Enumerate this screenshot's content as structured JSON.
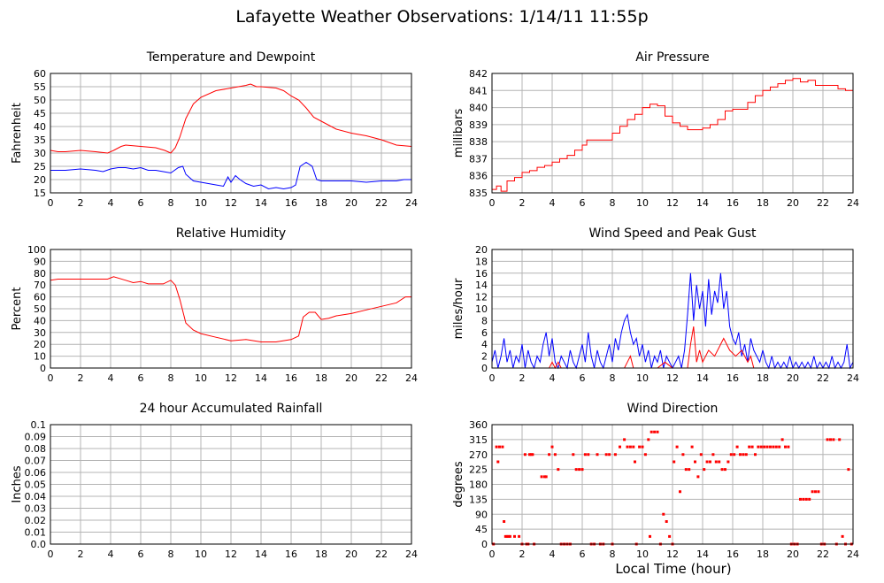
{
  "page": {
    "title": "Lafayette Weather Observations: 1/14/11 11:55p",
    "x_axis_title": "Local Time (hour)"
  },
  "chart_data": [
    {
      "id": "temp",
      "type": "line",
      "title": "Temperature and Dewpoint",
      "xlabel": "",
      "ylabel": "Fahrenheit",
      "xlim": [
        0,
        24
      ],
      "ylim": [
        15,
        60
      ],
      "x_ticks": [
        0,
        2,
        4,
        6,
        8,
        10,
        12,
        14,
        16,
        18,
        20,
        22,
        24
      ],
      "y_ticks": [
        15,
        20,
        25,
        30,
        35,
        40,
        45,
        50,
        55,
        60
      ],
      "grid": true,
      "series": [
        {
          "color": "#ff0000",
          "x": [
            0,
            0.5,
            1,
            2,
            3,
            3.8,
            4.2,
            4.7,
            5,
            6,
            7,
            7.6,
            8,
            8.3,
            8.6,
            9,
            9.5,
            10,
            11,
            12,
            13,
            13.3,
            13.7,
            14,
            15,
            15.5,
            16,
            16.5,
            17,
            17.5,
            18,
            19,
            20,
            21,
            22,
            23,
            24
          ],
          "y": [
            31,
            30.5,
            30.5,
            31,
            30.5,
            30,
            31,
            32.5,
            33,
            32.5,
            32,
            31,
            30,
            32,
            36,
            43,
            48.5,
            51,
            53.5,
            54.5,
            55.5,
            56,
            55,
            55,
            54.5,
            53.5,
            51.5,
            50,
            47,
            43.5,
            42,
            39,
            37.5,
            36.5,
            35,
            33,
            32.5
          ]
        },
        {
          "color": "#0000ff",
          "x": [
            0,
            0.5,
            1,
            2,
            3,
            3.5,
            4,
            4.5,
            5,
            5.5,
            6,
            6.5,
            7,
            7.5,
            8,
            8.5,
            8.8,
            9,
            9.5,
            10,
            10.5,
            11,
            11.5,
            11.8,
            12,
            12.3,
            12.6,
            13,
            13.5,
            14,
            14.5,
            15,
            15.5,
            16,
            16.3,
            16.6,
            17,
            17.4,
            17.7,
            18,
            19,
            20,
            21,
            22,
            23,
            23.5,
            24
          ],
          "y": [
            23.5,
            23.5,
            23.5,
            24,
            23.5,
            23,
            24,
            24.5,
            24.5,
            24,
            24.5,
            23.5,
            23.5,
            23,
            22.5,
            24.5,
            25,
            22,
            19.5,
            19,
            18.5,
            18,
            17.5,
            21,
            19,
            21.5,
            20,
            18.5,
            17.5,
            18,
            16.5,
            17,
            16.5,
            17,
            18,
            25,
            26.5,
            25,
            20,
            19.5,
            19.5,
            19.5,
            19,
            19.5,
            19.5,
            20,
            20
          ]
        }
      ]
    },
    {
      "id": "pressure",
      "type": "line",
      "title": "Air Pressure",
      "xlabel": "",
      "ylabel": "millibars",
      "xlim": [
        0,
        24
      ],
      "ylim": [
        835,
        842
      ],
      "x_ticks": [
        0,
        2,
        4,
        6,
        8,
        10,
        12,
        14,
        16,
        18,
        20,
        22,
        24
      ],
      "y_ticks": [
        835,
        836,
        837,
        838,
        839,
        840,
        841,
        842
      ],
      "grid": true,
      "series": [
        {
          "color": "#ff0000",
          "step": true,
          "x": [
            0,
            0.3,
            0.6,
            1,
            1.5,
            2,
            2.5,
            3,
            3.5,
            4,
            4.5,
            5,
            5.5,
            6,
            6.3,
            7,
            8,
            8.5,
            9,
            9.5,
            10,
            10.5,
            11,
            11.5,
            12,
            12.5,
            13,
            14,
            14.5,
            15,
            15.5,
            16,
            17,
            17.5,
            18,
            18.5,
            19,
            19.5,
            20,
            20.5,
            21,
            21.5,
            22,
            23,
            23.5,
            24
          ],
          "y": [
            835.2,
            835.4,
            835.1,
            835.7,
            835.9,
            836.2,
            836.3,
            836.5,
            836.6,
            836.8,
            837.0,
            837.2,
            837.5,
            837.8,
            838.1,
            838.1,
            838.5,
            838.9,
            839.3,
            839.6,
            840.0,
            840.2,
            840.1,
            839.5,
            839.1,
            838.9,
            838.7,
            838.8,
            839.0,
            839.3,
            839.8,
            839.9,
            840.3,
            840.7,
            841.0,
            841.2,
            841.4,
            841.6,
            841.7,
            841.5,
            841.6,
            841.3,
            841.3,
            841.1,
            841.0,
            840.8
          ]
        }
      ]
    },
    {
      "id": "humidity",
      "type": "line",
      "title": "Relative Humidity",
      "xlabel": "",
      "ylabel": "Percent",
      "xlim": [
        0,
        24
      ],
      "ylim": [
        0,
        100
      ],
      "x_ticks": [
        0,
        2,
        4,
        6,
        8,
        10,
        12,
        14,
        16,
        18,
        20,
        22,
        24
      ],
      "y_ticks": [
        0,
        10,
        20,
        30,
        40,
        50,
        60,
        70,
        80,
        90,
        100
      ],
      "grid": true,
      "series": [
        {
          "color": "#ff0000",
          "x": [
            0,
            0.5,
            1,
            2,
            3,
            3.8,
            4.2,
            5,
            5.5,
            6,
            6.5,
            7,
            7.5,
            8,
            8.3,
            8.6,
            9,
            9.5,
            10,
            11,
            12,
            13,
            14,
            15,
            16,
            16.5,
            16.8,
            17.2,
            17.6,
            18,
            18.5,
            19,
            20,
            21,
            22,
            23,
            23.6,
            24
          ],
          "y": [
            74,
            75,
            75,
            75,
            75,
            75,
            77,
            74,
            72,
            73,
            71,
            71,
            71,
            74,
            70,
            58,
            38,
            32,
            29,
            26,
            23,
            24,
            22,
            22,
            24,
            27,
            43,
            47,
            47,
            41,
            42,
            44,
            46,
            49,
            52,
            55,
            60,
            60
          ]
        }
      ]
    },
    {
      "id": "wind",
      "type": "line",
      "title": "Wind Speed and Peak Gust",
      "xlabel": "",
      "ylabel": "miles/hour",
      "xlim": [
        0,
        24
      ],
      "ylim": [
        0,
        20
      ],
      "x_ticks": [
        0,
        2,
        4,
        6,
        8,
        10,
        12,
        14,
        16,
        18,
        20,
        22,
        24
      ],
      "y_ticks": [
        0,
        2,
        4,
        6,
        8,
        10,
        12,
        14,
        16,
        18,
        20
      ],
      "grid": true,
      "series": [
        {
          "color": "#0000ff",
          "x": [
            0,
            0.2,
            0.4,
            0.6,
            0.8,
            1,
            1.2,
            1.4,
            1.6,
            1.8,
            2,
            2.2,
            2.4,
            2.6,
            2.8,
            3,
            3.2,
            3.4,
            3.6,
            3.8,
            4,
            4.2,
            4.4,
            4.6,
            4.8,
            5,
            5.2,
            5.4,
            5.6,
            5.8,
            6,
            6.2,
            6.4,
            6.6,
            6.8,
            7,
            7.2,
            7.4,
            7.6,
            7.8,
            8,
            8.2,
            8.4,
            8.6,
            8.8,
            9,
            9.2,
            9.4,
            9.6,
            9.8,
            10,
            10.2,
            10.4,
            10.6,
            10.8,
            11,
            11.2,
            11.4,
            11.6,
            11.8,
            12,
            12.2,
            12.4,
            12.6,
            12.8,
            13,
            13.2,
            13.4,
            13.6,
            13.8,
            14,
            14.2,
            14.4,
            14.6,
            14.8,
            15,
            15.2,
            15.4,
            15.6,
            15.8,
            16,
            16.2,
            16.4,
            16.6,
            16.8,
            17,
            17.2,
            17.4,
            17.6,
            17.8,
            18,
            18.2,
            18.4,
            18.6,
            18.8,
            19,
            19.2,
            19.4,
            19.6,
            19.8,
            20,
            20.2,
            20.4,
            20.6,
            20.8,
            21,
            21.2,
            21.4,
            21.6,
            21.8,
            22,
            22.2,
            22.4,
            22.6,
            22.8,
            23,
            23.2,
            23.4,
            23.6,
            23.8,
            24
          ],
          "y": [
            1,
            3,
            0,
            2,
            5,
            1,
            3,
            0,
            2,
            1,
            4,
            0,
            3,
            1,
            0,
            2,
            1,
            4,
            6,
            2,
            5,
            1,
            0,
            2,
            1,
            0,
            3,
            1,
            0,
            2,
            4,
            1,
            6,
            2,
            0,
            3,
            1,
            0,
            2,
            4,
            1,
            5,
            3,
            6,
            8,
            9,
            6,
            4,
            5,
            2,
            4,
            1,
            3,
            0,
            2,
            1,
            3,
            0,
            2,
            1,
            0,
            1,
            2,
            0,
            3,
            9,
            16,
            8,
            14,
            10,
            13,
            7,
            15,
            9,
            13,
            11,
            16,
            10,
            13,
            7,
            5,
            4,
            6,
            2,
            4,
            1,
            5,
            3,
            2,
            1,
            3,
            1,
            0,
            2,
            0,
            1,
            0,
            1,
            0,
            2,
            0,
            1,
            0,
            1,
            0,
            1,
            0,
            2,
            0,
            1,
            0,
            1,
            0,
            2,
            0,
            1,
            0,
            1,
            4,
            0,
            1
          ]
        },
        {
          "color": "#ff0000",
          "x": [
            0,
            3.8,
            4,
            4.2,
            4.4,
            4.6,
            6,
            8.8,
            9,
            9.2,
            9.4,
            11,
            11.5,
            12,
            13,
            13.2,
            13.4,
            13.6,
            13.8,
            14,
            14.4,
            14.8,
            15,
            15.4,
            15.8,
            16.2,
            16.6,
            17,
            17.2,
            17.4,
            18,
            20,
            24
          ],
          "y": [
            0,
            0,
            1,
            0,
            1,
            0,
            0,
            0,
            1,
            2,
            0,
            0,
            1,
            0,
            0,
            4,
            7,
            1,
            3,
            1,
            3,
            2,
            3,
            5,
            3,
            2,
            3,
            1,
            2,
            0,
            0,
            0,
            0
          ]
        }
      ]
    },
    {
      "id": "rain",
      "type": "line",
      "title": "24 hour Accumulated Rainfall",
      "xlabel": "",
      "ylabel": "Inches",
      "xlim": [
        0,
        24
      ],
      "ylim": [
        0,
        0.1
      ],
      "x_ticks": [
        0,
        2,
        4,
        6,
        8,
        10,
        12,
        14,
        16,
        18,
        20,
        22,
        24
      ],
      "y_ticks": [
        "0.0",
        "0.01",
        "0.02",
        "0.03",
        "0.04",
        "0.05",
        "0.06",
        "0.07",
        "0.08",
        "0.09",
        "0.1"
      ],
      "grid": true,
      "series": [
        {
          "color": "#ff0000",
          "x": [
            0,
            24
          ],
          "y": [
            0,
            0
          ]
        }
      ]
    },
    {
      "id": "direction",
      "type": "scatter",
      "title": "Wind Direction",
      "xlabel": "",
      "ylabel": "degrees",
      "xlim": [
        0,
        24
      ],
      "ylim": [
        0,
        360
      ],
      "x_ticks": [
        0,
        2,
        4,
        6,
        8,
        10,
        12,
        14,
        16,
        18,
        20,
        22,
        24
      ],
      "y_ticks": [
        0,
        45,
        90,
        135,
        180,
        225,
        270,
        315,
        360
      ],
      "grid": true,
      "series": [
        {
          "color": "#ff0000",
          "x": [
            0.1,
            0.3,
            0.5,
            0.7,
            0.9,
            1.1,
            0.8,
            1,
            1.2,
            1.5,
            1.8,
            0.4,
            2,
            2.2,
            2.4,
            2.6,
            2.8,
            2.3,
            2.5,
            2.7,
            3.3,
            3.5,
            3.6,
            3.8,
            4,
            4.2,
            4.4,
            4.6,
            4.8,
            5,
            5.2,
            5.4,
            5.6,
            5.8,
            6,
            6.2,
            6.4,
            6.6,
            6.8,
            7,
            7.2,
            7.4,
            7.6,
            7.8,
            8,
            8.2,
            8.5,
            8.8,
            9,
            9.2,
            9.4,
            9.6,
            9.8,
            10,
            10.2,
            10.4,
            10.6,
            10.8,
            10.5,
            9.5,
            11,
            11.2,
            11.4,
            11.6,
            11.8,
            12,
            12.1,
            12.3,
            12.5,
            12.7,
            12.9,
            13.1,
            13.3,
            13.5,
            13.7,
            13.9,
            14.1,
            14.3,
            14.5,
            14.7,
            14.9,
            15.1,
            15.3,
            15.5,
            15.7,
            15.9,
            16.1,
            16.3,
            16.5,
            16.7,
            16.9,
            17.1,
            17.3,
            17.5,
            17.7,
            17.9,
            18.1,
            18.3,
            18.5,
            18.7,
            18.9,
            19.1,
            19.3,
            19.5,
            19.7,
            19.9,
            20.1,
            20.3,
            20.5,
            20.7,
            20.9,
            21.1,
            21.3,
            21.5,
            21.7,
            21.9,
            22.1,
            22.3,
            22.5,
            22.7,
            22.9,
            23.1,
            23.3,
            23.5,
            23.7,
            23.9
          ],
          "y": [
            0,
            293,
            293,
            293,
            23,
            23,
            68,
            23,
            23,
            23,
            23,
            248,
            0,
            270,
            0,
            270,
            0,
            0,
            270,
            270,
            203,
            203,
            203,
            270,
            293,
            270,
            225,
            0,
            0,
            0,
            0,
            270,
            225,
            225,
            225,
            270,
            270,
            0,
            0,
            270,
            0,
            0,
            270,
            270,
            0,
            270,
            293,
            315,
            293,
            293,
            293,
            0,
            293,
            293,
            270,
            315,
            338,
            338,
            23,
            248,
            338,
            0,
            90,
            68,
            23,
            0,
            248,
            293,
            158,
            270,
            225,
            225,
            293,
            248,
            203,
            270,
            225,
            248,
            248,
            270,
            248,
            248,
            225,
            225,
            248,
            270,
            270,
            293,
            270,
            270,
            270,
            293,
            293,
            270,
            293,
            293,
            293,
            293,
            293,
            293,
            293,
            293,
            315,
            293,
            293,
            0,
            0,
            0,
            135,
            135,
            135,
            135,
            158,
            158,
            158,
            0,
            0,
            315,
            315,
            315,
            0,
            315,
            23,
            0,
            225,
            0
          ]
        }
      ]
    }
  ]
}
